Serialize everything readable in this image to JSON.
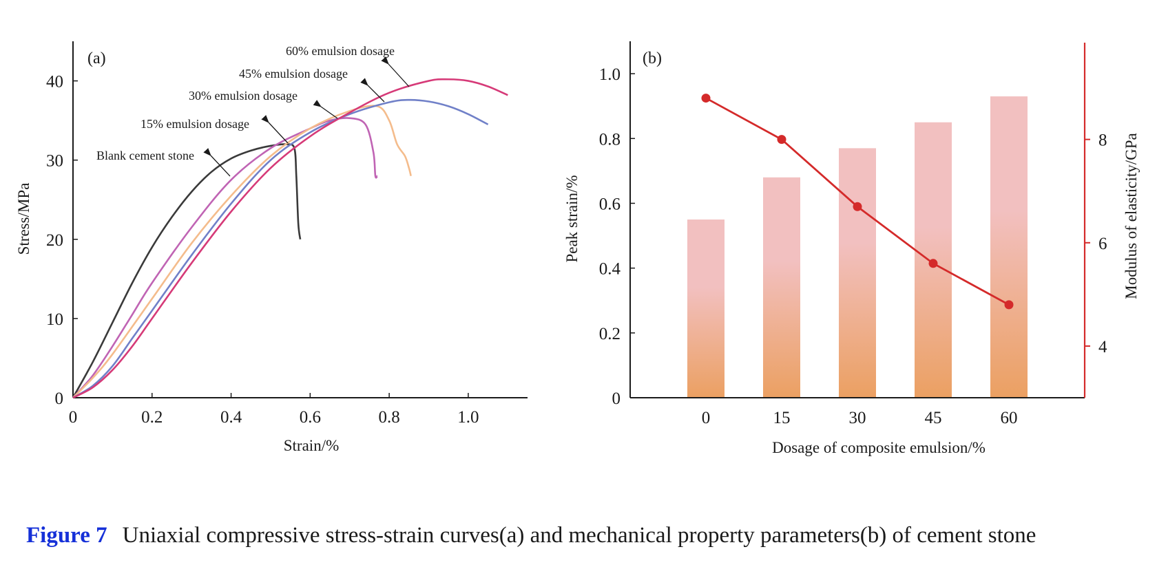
{
  "chart_data": [
    {
      "type": "line",
      "panel_label": "(a)",
      "xlabel": "Strain/%",
      "ylabel": "Stress/MPa",
      "xlim": [
        0,
        1.15
      ],
      "ylim": [
        0,
        45
      ],
      "xticks": [
        0,
        0.2,
        0.4,
        0.6,
        0.8,
        1.0
      ],
      "xtick_labels": [
        "0",
        "0.2",
        "0.4",
        "0.6",
        "0.8",
        "1.0"
      ],
      "yticks": [
        0,
        10,
        20,
        30,
        40
      ],
      "ytick_labels": [
        "0",
        "10",
        "20",
        "30",
        "40"
      ],
      "grid": false,
      "series": [
        {
          "name": "Blank cement stone",
          "color": "#3a3a3a",
          "x": [
            0,
            0.05,
            0.1,
            0.15,
            0.2,
            0.25,
            0.3,
            0.35,
            0.4,
            0.45,
            0.5,
            0.54,
            0.56,
            0.565,
            0.57,
            0.575
          ],
          "y": [
            0,
            4.5,
            9.5,
            14.5,
            19,
            22.8,
            26,
            28.5,
            30.2,
            31.2,
            31.8,
            32,
            31.5,
            28,
            22,
            20
          ]
        },
        {
          "name": "15% emulsion dosage",
          "color": "#c064b4",
          "x": [
            0,
            0.05,
            0.1,
            0.15,
            0.2,
            0.3,
            0.4,
            0.5,
            0.6,
            0.65,
            0.7,
            0.74,
            0.76,
            0.765,
            0.77
          ],
          "y": [
            0,
            2.8,
            6.5,
            10.5,
            14.5,
            21.5,
            27.5,
            31.5,
            34,
            35,
            35.3,
            34.5,
            31,
            28,
            28
          ]
        },
        {
          "name": "30% emulsion dosage",
          "color": "#f4bc8c",
          "x": [
            0,
            0.05,
            0.1,
            0.2,
            0.3,
            0.4,
            0.5,
            0.6,
            0.7,
            0.77,
            0.8,
            0.82,
            0.84,
            0.85,
            0.855
          ],
          "y": [
            0,
            2.5,
            5.5,
            12.5,
            19.5,
            25.5,
            30.5,
            34,
            36.2,
            36.8,
            35,
            32,
            30.5,
            29,
            28
          ]
        },
        {
          "name": "45% emulsion dosage",
          "color": "#7080c8",
          "x": [
            0,
            0.05,
            0.1,
            0.15,
            0.2,
            0.3,
            0.4,
            0.5,
            0.6,
            0.7,
            0.8,
            0.85,
            0.9,
            0.95,
            1.0,
            1.05
          ],
          "y": [
            0,
            1.5,
            4,
            7.5,
            11,
            18,
            24.5,
            30,
            33.5,
            35.8,
            37.3,
            37.6,
            37.4,
            36.8,
            35.8,
            34.5
          ]
        },
        {
          "name": "60% emulsion dosage",
          "color": "#d63a78",
          "x": [
            0,
            0.05,
            0.1,
            0.15,
            0.2,
            0.3,
            0.4,
            0.5,
            0.6,
            0.7,
            0.8,
            0.9,
            0.95,
            1.0,
            1.05,
            1.1
          ],
          "y": [
            0,
            1.3,
            3.5,
            6.5,
            10,
            17,
            23.5,
            29,
            33,
            36,
            38.5,
            40,
            40.2,
            40,
            39.3,
            38.2
          ]
        }
      ],
      "annotations": [
        "60% emulsion dosage",
        "45% emulsion dosage",
        "30% emulsion dosage",
        "15% emulsion dosage",
        "Blank cement stone"
      ]
    },
    {
      "type": "bar",
      "panel_label": "(b)",
      "xlabel": "Dosage of composite emulsion/%",
      "ylabel": "Peak strain/%",
      "y2label": "Modulus of elasticity/GPa",
      "categories": [
        "0",
        "15",
        "30",
        "45",
        "60"
      ],
      "ylim": [
        0,
        1.1
      ],
      "yticks": [
        0,
        0.2,
        0.4,
        0.6,
        0.8,
        1.0
      ],
      "ytick_labels": [
        "0",
        "0.2",
        "0.4",
        "0.6",
        "0.8",
        "1.0"
      ],
      "y2lim": [
        3,
        9.9
      ],
      "y2ticks": [
        4,
        6,
        8
      ],
      "y2tick_labels": [
        "4",
        "6",
        "8"
      ],
      "grid": false,
      "series": [
        {
          "name": "Peak strain",
          "axis": "left",
          "kind": "bar",
          "color_top": "#f2c0c0",
          "color_bottom": "#eba062",
          "values": [
            0.55,
            0.68,
            0.77,
            0.85,
            0.93
          ]
        },
        {
          "name": "Modulus of elasticity",
          "axis": "right",
          "kind": "line",
          "color": "#d42a2a",
          "values": [
            8.8,
            8.0,
            6.7,
            5.6,
            4.8
          ]
        }
      ]
    }
  ],
  "caption": {
    "label": "Figure 7",
    "text": "Uniaxial compressive stress-strain curves(a) and mechanical property parameters(b) of cement stone"
  }
}
